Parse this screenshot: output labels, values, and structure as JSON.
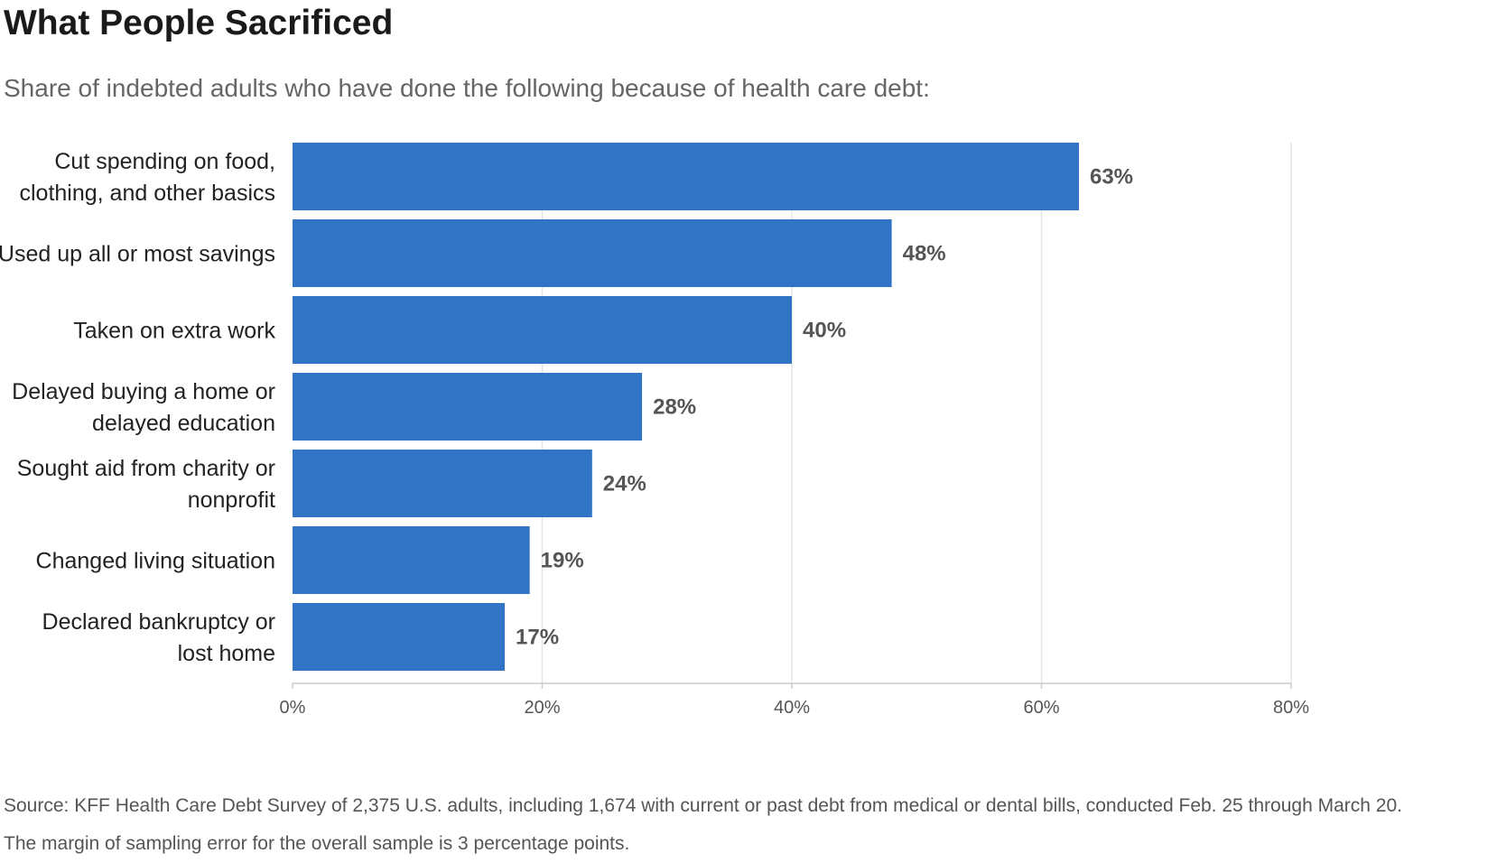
{
  "chart_data": {
    "type": "bar",
    "orientation": "horizontal",
    "title": "What People Sacrificed",
    "subtitle": "Share of indebted adults who have done the following because of health care debt:",
    "categories": [
      [
        "Cut spending on food,",
        "clothing, and other basics"
      ],
      [
        "Used up all or most savings"
      ],
      [
        "Taken on extra work"
      ],
      [
        "Delayed buying a home or",
        "delayed education"
      ],
      [
        "Sought aid from charity or",
        "nonprofit"
      ],
      [
        "Changed living situation"
      ],
      [
        "Declared bankruptcy or",
        "lost home"
      ]
    ],
    "values": [
      63,
      48,
      40,
      28,
      24,
      19,
      17
    ],
    "value_labels": [
      "63%",
      "48%",
      "40%",
      "28%",
      "24%",
      "19%",
      "17%"
    ],
    "xlim": [
      0,
      80
    ],
    "x_ticks": [
      0,
      20,
      40,
      60,
      80
    ],
    "x_tick_labels": [
      "0%",
      "20%",
      "40%",
      "60%",
      "80%"
    ],
    "grid": true,
    "bar_color": "#3174c5",
    "gridline_color": "#e6e6e6",
    "axis_color": "#cccccc"
  },
  "source": "Source: KFF Health Care Debt Survey of 2,375 U.S. adults, including 1,674 with current or past debt from medical or dental bills, conducted Feb. 25 through March 20. The margin of sampling error for the overall sample is 3 percentage points."
}
